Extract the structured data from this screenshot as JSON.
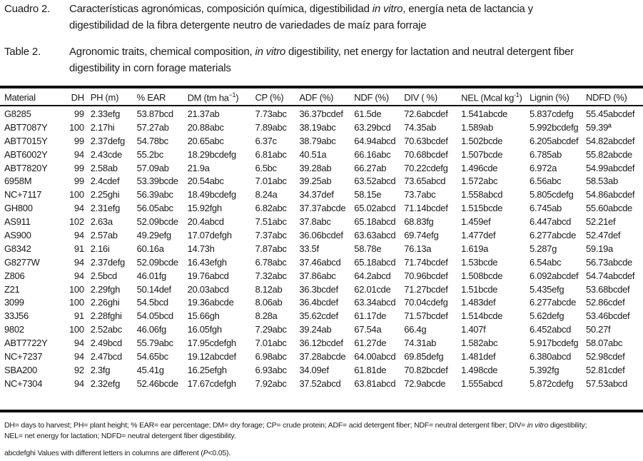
{
  "caption_es": {
    "label": "Cuadro 2.",
    "line1_a": "Características agronómicas, composición química, digestibilidad ",
    "line1_italic": "in vitro",
    "line1_b": ", energía neta de lactancia y",
    "line2": "digestibilidad de la fibra detergente neutro de variedades de maíz para forraje"
  },
  "caption_en": {
    "label": "Table 2.",
    "line1_a": "Agronomic traits, chemical composition, ",
    "line1_italic": "in vitro",
    "line1_b": " digestibility, net energy for lactation and neutral detergent fiber",
    "line2": "digestibility in corn forage materials"
  },
  "table": {
    "headers": [
      "Material",
      "DH",
      "PH (m)",
      "% EAR",
      "DM (tm ha",
      "CP (%)",
      "ADF (%)",
      "NDF (%)",
      "DIV ( %)",
      "NEL (Mcal kg",
      "Lignin (%)",
      "NDFD (%)"
    ],
    "header_sup": {
      "dm": "−1",
      "dm_close": ")",
      "nel": "-1",
      "nel_close": ")"
    },
    "rows": [
      [
        "G8285",
        "99",
        "2.33efg",
        "53.87bcd",
        "21.37ab",
        "7.73abc",
        "36.37bcdef",
        "61.5de",
        "72.6abcdef",
        "1.541abcde",
        "5.837cdefg",
        "55.45abcdef"
      ],
      [
        "ABT7087Y",
        "100",
        "2.17hi",
        "57.27ab",
        "20.88abc",
        "7.89abc",
        "38.19abc",
        "63.29bcd",
        "74.35ab",
        "1.589ab",
        "5.992bcdefg",
        "59.39ª"
      ],
      [
        "ABT7015Y",
        "99",
        "2.37defg",
        "54.78bc",
        "20.65abc",
        "6.37c",
        "38.79abc",
        "64.94abcd",
        "70.63bcdef",
        "1.502bcde",
        "6.205abcdef",
        "54.82abcdef"
      ],
      [
        "ABT6002Y",
        "94",
        "2.43cde",
        "55.2bc",
        "18.29bcdefg",
        "6.81abc",
        "40.51a",
        "66.16abc",
        "70.68bcdef",
        "1.507bcde",
        "6.785ab",
        "55.82abcde"
      ],
      [
        "ABT7820Y",
        "99",
        "2.58ab",
        "57.09ab",
        "21.9a",
        "6.5bc",
        "39.28ab",
        "66.27ab",
        "70.22cdefg",
        "1.496cde",
        "6.972a",
        "54.99abcdef"
      ],
      [
        "6958M",
        "99",
        "2.4cdef",
        "53.39bcde",
        "20.54abc",
        "7.01abc",
        "39.25ab",
        "63.52abcd",
        "73.65abcd",
        "1.572abc",
        "6.56abc",
        "58.53ab"
      ],
      [
        "NC+7117",
        "100",
        "2.25ghi",
        "56.39abc",
        "18.49bcdefg",
        "8.24a",
        "34.37def",
        "58.15e",
        "73.7abc",
        "1.558abcd",
        "5.805cdefg",
        "54.86abcdef"
      ],
      [
        "GH800",
        "94",
        "2.31efg",
        "56.05abc",
        "15.92fgh",
        "6.82abc",
        "37.37abcde",
        "65.02abcd",
        "71.14bcdef",
        "1.515bcde",
        "6.745ab",
        "55.60abcde"
      ],
      [
        "AS911",
        "102",
        "2.63a",
        "52.09bcde",
        "20.4abcd",
        "7.51abc",
        "37.8abc",
        "65.18abcd",
        "68.83fg",
        "1.459ef",
        "6.447abcd",
        "52.21ef"
      ],
      [
        "AS900",
        "94",
        "2.57ab",
        "49.29efg",
        "17.07defgh",
        "7.37abc",
        "36.06bcdef",
        "63.63abcd",
        "69.74efg",
        "1.477def",
        "6.277abcde",
        "52.47def"
      ],
      [
        "G8342",
        "91",
        "2.16i",
        "60.16a",
        "14.73h",
        "7.87abc",
        "33.5f",
        "58.78e",
        "76.13a",
        "1.619a",
        "5.287g",
        "59.19a"
      ],
      [
        "G8277W",
        "94",
        "2.37defg",
        "52.09bcde",
        "16.43efgh",
        "6.78abc",
        "37.46abcd",
        "65.18abcd",
        "71.74bcdef",
        "1.53bcde",
        "6.54abc",
        "56.73abcde"
      ],
      [
        "Z806",
        "94",
        "2.5bcd",
        "46.01fg",
        "19.76abcd",
        "7.32abc",
        "37.86abc",
        "64.2abcd",
        "70.96bcdef",
        "1.508bcde",
        "6.092abcdef",
        "54.74abcdef"
      ],
      [
        "Z21",
        "100",
        "2.29fgh",
        "50.14def",
        "20.03abcd",
        "8.12ab",
        "36.3bcdef",
        "62.01cde",
        "71.27bcdef",
        "1.51bcde",
        "5.435efg",
        "53.68bcdef"
      ],
      [
        "3099",
        "100",
        "2.26ghi",
        "54.5bcd",
        "19.36abcde",
        "8.06ab",
        "36.4bcdef",
        "63.34abcd",
        "70.04cdefg",
        "1.483def",
        "6.277abcde",
        "52.86cdef"
      ],
      [
        "33J56",
        "91",
        "2.28fghi",
        "54.05bcd",
        "15.66gh",
        "8.28a",
        "35.62cdef",
        "61.17de",
        "71.57bcdef",
        "1.514bcde",
        "5.62defg",
        "53.46bcdef"
      ],
      [
        "9802",
        "100",
        "2.52abc",
        "46.06fg",
        "16.05fgh",
        "7.29abc",
        "39.24ab",
        "67.54a",
        "66.4g",
        "1.407f",
        "6.452abcd",
        "50.27f"
      ],
      [
        "ABT7722Y",
        "94",
        "2.49bcd",
        "55.79abc",
        "17.95cdefgh",
        "7.01abc",
        "36.12bcdef",
        "61.27de",
        "74.31ab",
        "1.582abc",
        "5.917bcdefg",
        "58.07abc"
      ],
      [
        "NC+7237",
        "94",
        "2.47bcd",
        "54.65bc",
        "19.12abcdef",
        "6.98abc",
        "37.28abcde",
        "64.00abcd",
        "69.85defg",
        "1.481def",
        "6.380abcd",
        "52.98cdef"
      ],
      [
        "SBA200",
        "92",
        "2.3fg",
        "45.41g",
        "16.25efgh",
        "6.93abc",
        "34.09ef",
        "61.81de",
        "70.82bcdef",
        "1.498cde",
        "5.392fg",
        "52.81cdef"
      ],
      [
        "NC+7304",
        "94",
        "2.32efg",
        "52.46bcde",
        "17.67cdefgh",
        "7.92abc",
        "37.52abcd",
        "63.81abcd",
        "72.9abcde",
        "1.555abcd",
        "5.872cdefg",
        "57.53abcd"
      ]
    ]
  },
  "footnotes": {
    "line1_a": "DH= days to harvest; PH= plant height; % EAR= ear percentage; DM= dry forage; CP= crude protein; ADF= acid detergent fiber; NDF= neutral detergent fiber; DIV= ",
    "line1_italic": "in vitro",
    "line1_b": " digestibility;",
    "line2": "NEL= net energy for lactation; NDFD= neutral detergent fiber digestibility.",
    "line3_a": "abcdefghi Values with different letters in columns are different (",
    "line3_italic": "P",
    "line3_b": "<0.05)."
  }
}
